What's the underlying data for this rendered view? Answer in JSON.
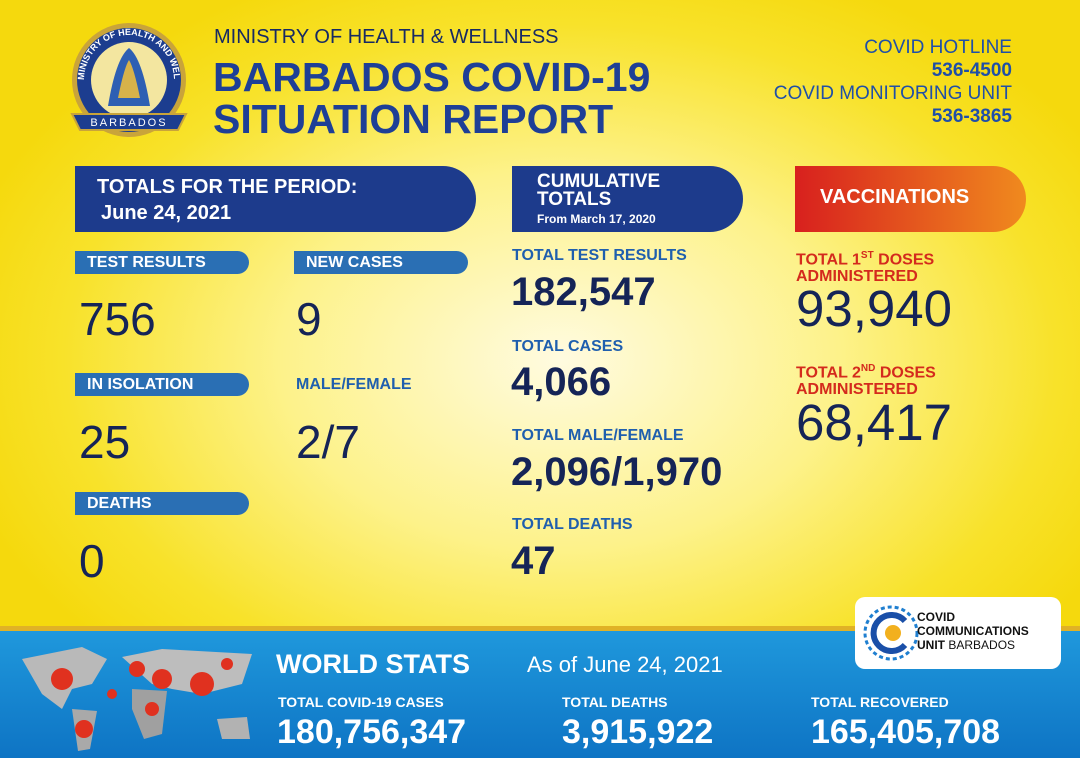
{
  "logo": {
    "ring_text": "MINISTRY OF HEALTH AND WELLNESS",
    "country": "BARBADOS"
  },
  "header": {
    "ministry": "MINISTRY OF HEALTH & WELLNESS",
    "title_line1": "BARBADOS COVID-19",
    "title_line2": "SITUATION REPORT"
  },
  "contacts": {
    "hotline_label": "COVID HOTLINE",
    "hotline_number": "536-4500",
    "monitoring_label": "COVID MONITORING UNIT",
    "monitoring_number": "536-3865"
  },
  "period": {
    "heading": "TOTALS FOR THE PERIOD:",
    "date": "June 24, 2021",
    "stats": [
      {
        "label": "TEST RESULTS",
        "value": "756"
      },
      {
        "label": "NEW CASES",
        "value": "9"
      },
      {
        "label": "IN ISOLATION",
        "value": "25"
      },
      {
        "label": "MALE/FEMALE",
        "value": "2/7"
      },
      {
        "label": "DEATHS",
        "value": "0"
      }
    ]
  },
  "cumulative": {
    "heading_line1": "CUMULATIVE",
    "heading_line2": "TOTALS",
    "since": "From March 17, 2020",
    "stats": [
      {
        "label": "TOTAL TEST RESULTS",
        "value": "182,547"
      },
      {
        "label": "TOTAL CASES",
        "value": "4,066"
      },
      {
        "label": "TOTAL MALE/FEMALE",
        "value": "2,096/1,970"
      },
      {
        "label": "TOTAL DEATHS",
        "value": "47"
      }
    ]
  },
  "vaccinations": {
    "heading": "VACCINATIONS",
    "stats": [
      {
        "label_pre": "TOTAL 1",
        "label_sup": "ST",
        "label_post": "DOSES",
        "label_line2": "ADMINISTERED",
        "value": "93,940"
      },
      {
        "label_pre": "TOTAL 2",
        "label_sup": "ND",
        "label_post": "DOSES",
        "label_line2": "ADMINISTERED",
        "value": "68,417"
      }
    ]
  },
  "world": {
    "heading": "WORLD STATS",
    "as_of": "As of June 24, 2021",
    "stats": [
      {
        "label": "TOTAL COVID-19 CASES",
        "value": "180,756,347"
      },
      {
        "label": "TOTAL DEATHS",
        "value": "3,915,922"
      },
      {
        "label": "TOTAL RECOVERED",
        "value": "165,405,708"
      }
    ]
  },
  "ccu_logo": {
    "line1": "COVID",
    "line2": "COMMUNICATIONS",
    "line3_bold": "UNIT",
    "line3_rest": "BARBADOS"
  }
}
